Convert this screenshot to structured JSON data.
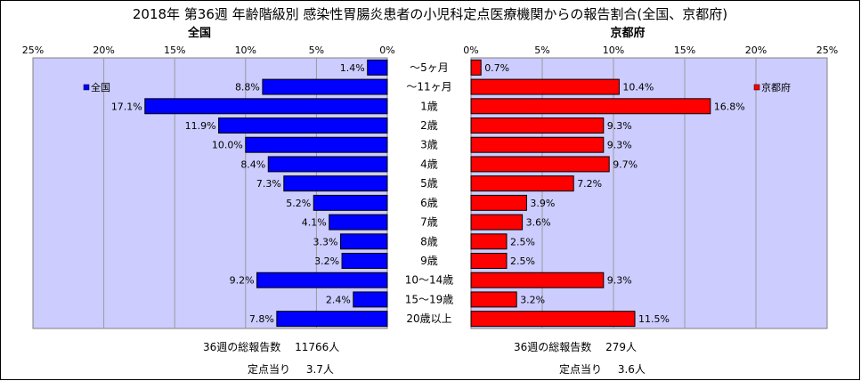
{
  "title": "2018年 第36週 年齢階級別 感染性胃腸炎患者の小児科定点医療機関からの報告割合(全国、京都府)",
  "chart_data": [
    {
      "type": "bar",
      "orientation": "horizontal",
      "direction": "right-to-left",
      "panel_title": "全国",
      "legend": "全国",
      "legend_position": "top-left",
      "color": "#0000ff",
      "xlim": [
        0,
        25
      ],
      "ticks": [
        "25%",
        "20%",
        "15%",
        "10%",
        "5%",
        "0%"
      ],
      "grid": true,
      "categories": [
        "～5ヶ月",
        "～11ヶ月",
        "1歳",
        "2歳",
        "3歳",
        "4歳",
        "5歳",
        "6歳",
        "7歳",
        "8歳",
        "9歳",
        "10～14歳",
        "15～19歳",
        "20歳以上"
      ],
      "values": [
        1.4,
        8.8,
        17.1,
        11.9,
        10.0,
        8.4,
        7.3,
        5.2,
        4.1,
        3.3,
        3.2,
        9.2,
        2.4,
        7.8
      ],
      "labels": [
        "1.4%",
        "8.8%",
        "17.1%",
        "11.9%",
        "10.0%",
        "8.4%",
        "7.3%",
        "5.2%",
        "4.1%",
        "3.3%",
        "3.2%",
        "9.2%",
        "2.4%",
        "7.8%"
      ]
    },
    {
      "type": "bar",
      "orientation": "horizontal",
      "direction": "left-to-right",
      "panel_title": "京都府",
      "legend": "京都府",
      "legend_position": "top-right",
      "color": "#ff0000",
      "xlim": [
        0,
        25
      ],
      "ticks": [
        "0%",
        "5%",
        "10%",
        "15%",
        "20%",
        "25%"
      ],
      "grid": true,
      "categories": [
        "～5ヶ月",
        "～11ヶ月",
        "1歳",
        "2歳",
        "3歳",
        "4歳",
        "5歳",
        "6歳",
        "7歳",
        "8歳",
        "9歳",
        "10～14歳",
        "15～19歳",
        "20歳以上"
      ],
      "values": [
        0.7,
        10.4,
        16.8,
        9.3,
        9.3,
        9.7,
        7.2,
        3.9,
        3.6,
        2.5,
        2.5,
        9.3,
        3.2,
        11.5
      ],
      "labels": [
        "0.7%",
        "10.4%",
        "16.8%",
        "9.3%",
        "9.3%",
        "9.7%",
        "7.2%",
        "3.9%",
        "3.6%",
        "2.5%",
        "2.5%",
        "9.3%",
        "3.2%",
        "11.5%"
      ]
    }
  ],
  "footer": {
    "left": {
      "total_label": "36週の総報告数",
      "total_value": "11766人",
      "per_label": "定点当り",
      "per_value": "3.7人"
    },
    "right": {
      "total_label": "36週の総報告数",
      "total_value": "279人",
      "per_label": "定点当り",
      "per_value": "3.6人"
    }
  }
}
